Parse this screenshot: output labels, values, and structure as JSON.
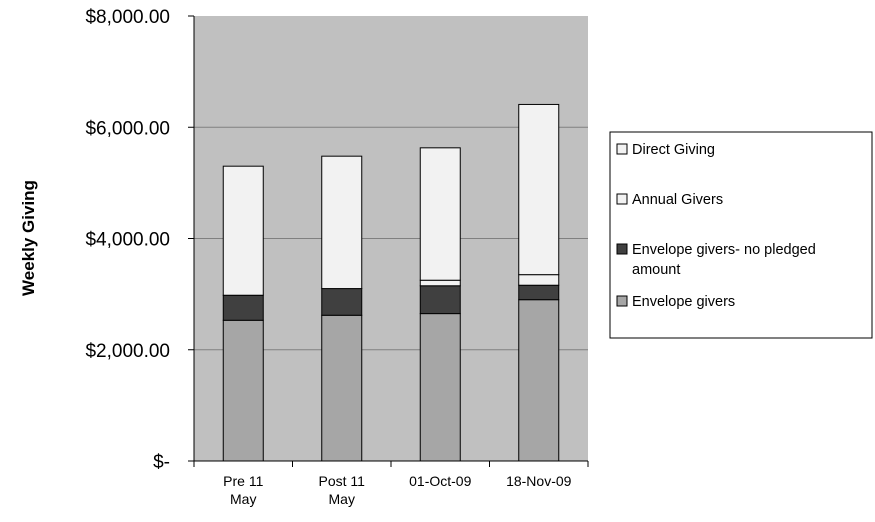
{
  "chart_data": {
    "type": "bar",
    "stacked": true,
    "title": "",
    "xlabel": "",
    "ylabel": "Weekly Giving",
    "ylim": [
      0,
      8000
    ],
    "y_ticks": [
      0,
      2000,
      4000,
      6000,
      8000
    ],
    "y_tick_labels": [
      "$-",
      "$2,000.00",
      "$4,000.00",
      "$6,000.00",
      "$8,000.00"
    ],
    "categories": [
      [
        "Pre 11",
        "May"
      ],
      [
        "Post 11",
        "May"
      ],
      [
        "01-Oct-09"
      ],
      [
        "18-Nov-09"
      ]
    ],
    "series": [
      {
        "name": "Envelope givers",
        "color": "#a6a6a6",
        "values": [
          2530,
          2620,
          2650,
          2900
        ]
      },
      {
        "name": "Envelope givers- no pledged amount",
        "color": "#404040",
        "values": [
          450,
          480,
          500,
          260
        ]
      },
      {
        "name": "Annual Givers",
        "color": "#f2f2f2",
        "values": [
          0,
          0,
          100,
          190
        ]
      },
      {
        "name": "Direct Giving",
        "color": "#f2f2f2",
        "values": [
          2320,
          2380,
          2380,
          3060
        ]
      }
    ],
    "legend": {
      "position": "right",
      "entries": [
        {
          "lines": [
            "Direct Giving"
          ],
          "color": "#f2f2f2"
        },
        {
          "lines": [
            "Annual Givers"
          ],
          "color": "#f2f2f2"
        },
        {
          "lines": [
            "Envelope givers- no pledged",
            "amount"
          ],
          "color": "#404040"
        },
        {
          "lines": [
            "Envelope givers"
          ],
          "color": "#a6a6a6"
        }
      ]
    },
    "grid": true,
    "plot_background": "#c0c0c0",
    "gridline_color": "#808080"
  }
}
